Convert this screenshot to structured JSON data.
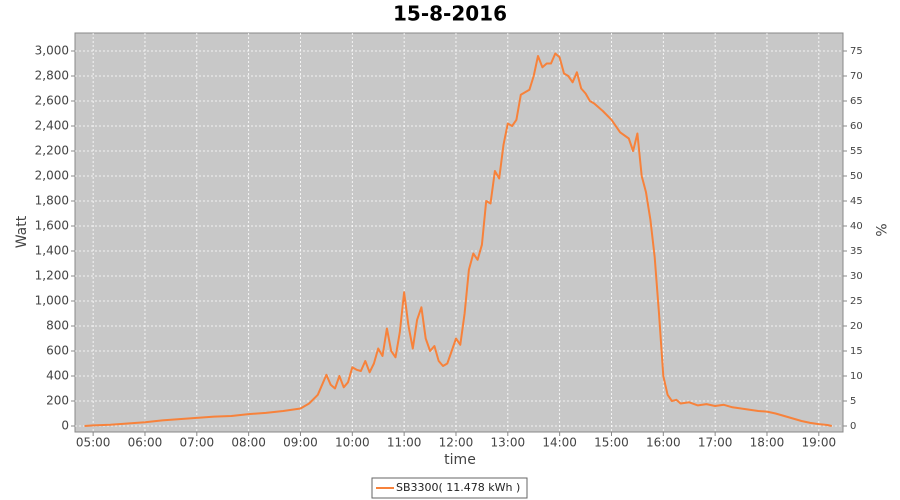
{
  "chart_data": {
    "type": "line",
    "title": "15-8-2016",
    "x_label": "time",
    "y_label": "Watt",
    "y2_label": "%",
    "x": [
      "04:50",
      "05:00",
      "05:20",
      "05:40",
      "06:00",
      "06:20",
      "06:40",
      "07:00",
      "07:20",
      "07:40",
      "08:00",
      "08:20",
      "08:40",
      "09:00",
      "09:10",
      "09:20",
      "09:30",
      "09:35",
      "09:40",
      "09:45",
      "09:50",
      "09:55",
      "10:00",
      "10:05",
      "10:10",
      "10:15",
      "10:20",
      "10:25",
      "10:30",
      "10:35",
      "10:40",
      "10:45",
      "10:50",
      "10:55",
      "11:00",
      "11:05",
      "11:10",
      "11:15",
      "11:20",
      "11:25",
      "11:30",
      "11:35",
      "11:40",
      "11:45",
      "11:50",
      "11:55",
      "12:00",
      "12:05",
      "12:10",
      "12:15",
      "12:20",
      "12:25",
      "12:30",
      "12:35",
      "12:40",
      "12:45",
      "12:50",
      "12:55",
      "13:00",
      "13:05",
      "13:10",
      "13:15",
      "13:20",
      "13:25",
      "13:30",
      "13:35",
      "13:40",
      "13:45",
      "13:50",
      "13:55",
      "14:00",
      "14:05",
      "14:10",
      "14:15",
      "14:20",
      "14:25",
      "14:30",
      "14:35",
      "14:40",
      "14:50",
      "15:00",
      "15:10",
      "15:20",
      "15:25",
      "15:30",
      "15:35",
      "15:40",
      "15:45",
      "15:50",
      "15:55",
      "16:00",
      "16:05",
      "16:10",
      "16:15",
      "16:20",
      "16:30",
      "16:40",
      "16:50",
      "17:00",
      "17:10",
      "17:20",
      "17:30",
      "17:40",
      "17:50",
      "18:00",
      "18:10",
      "18:20",
      "18:30",
      "18:40",
      "18:50",
      "19:00",
      "19:10",
      "19:15"
    ],
    "series": [
      {
        "name": "SB3300( 11.478 kWh )",
        "color": "#f7823b",
        "values": [
          0,
          5,
          10,
          20,
          30,
          45,
          55,
          65,
          75,
          80,
          95,
          105,
          120,
          140,
          180,
          250,
          410,
          330,
          300,
          400,
          310,
          350,
          470,
          450,
          440,
          520,
          430,
          500,
          620,
          560,
          780,
          600,
          550,
          750,
          1070,
          800,
          620,
          850,
          950,
          700,
          600,
          640,
          520,
          480,
          500,
          600,
          700,
          650,
          900,
          1250,
          1380,
          1330,
          1450,
          1800,
          1780,
          2040,
          1980,
          2250,
          2420,
          2400,
          2450,
          2650,
          2670,
          2690,
          2800,
          2960,
          2870,
          2900,
          2900,
          2980,
          2950,
          2820,
          2800,
          2750,
          2830,
          2700,
          2660,
          2600,
          2580,
          2520,
          2450,
          2350,
          2300,
          2200,
          2340,
          2000,
          1870,
          1650,
          1350,
          900,
          400,
          250,
          200,
          210,
          180,
          190,
          165,
          175,
          160,
          170,
          150,
          140,
          130,
          120,
          115,
          100,
          80,
          60,
          40,
          25,
          15,
          8,
          0
        ]
      }
    ],
    "xlim": [
      "04:39",
      "19:28"
    ],
    "xticks": [
      "05:00",
      "06:00",
      "07:00",
      "08:00",
      "09:00",
      "10:00",
      "11:00",
      "12:00",
      "13:00",
      "14:00",
      "15:00",
      "16:00",
      "17:00",
      "18:00",
      "19:00"
    ],
    "ylim": [
      -48,
      3144
    ],
    "yticks": [
      0,
      200,
      400,
      600,
      800,
      {
        "value": 1000,
        "label": "1,000"
      },
      {
        "value": 1200,
        "label": "1,200"
      },
      {
        "value": 1400,
        "label": "1,400"
      },
      {
        "value": 1600,
        "label": "1,600"
      },
      {
        "value": 1800,
        "label": "1,800"
      },
      {
        "value": 2000,
        "label": "2,000"
      },
      {
        "value": 2200,
        "label": "2,200"
      },
      {
        "value": 2400,
        "label": "2,400"
      },
      {
        "value": 2600,
        "label": "2,600"
      },
      {
        "value": 2800,
        "label": "2,800"
      },
      {
        "value": 3000,
        "label": "3,000"
      }
    ],
    "y2lim": [
      -1.2,
      78.6
    ],
    "y2ticks": [
      0,
      5,
      10,
      15,
      20,
      25,
      30,
      35,
      40,
      45,
      50,
      55,
      60,
      65,
      70,
      75
    ],
    "grid": true,
    "plot_background": "#c8c8c8"
  }
}
